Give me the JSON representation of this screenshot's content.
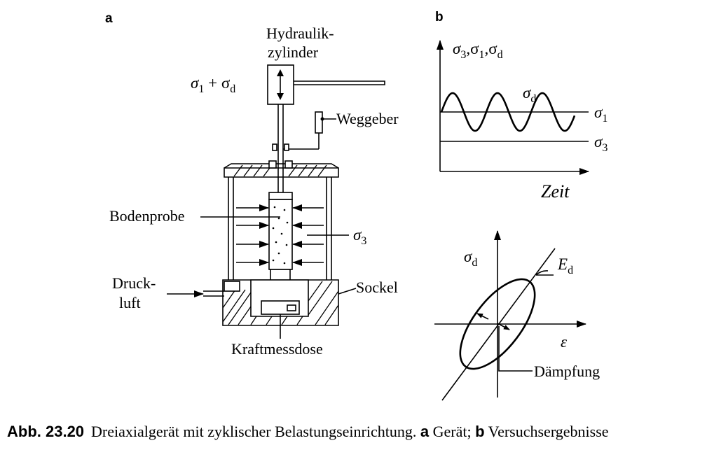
{
  "panel_a": {
    "label": "a",
    "cylinder_label_line1": "Hydraulik-",
    "cylinder_label_line2": "zylinder",
    "load_label": "σ",
    "load_sub1": "1",
    "load_plus": " + σ",
    "load_sub2": "d",
    "weggeber": "Weggeber",
    "bodenprobe": "Bodenprobe",
    "sigma3": "σ",
    "sigma3_sub": "3",
    "druck_line1": "Druck-",
    "druck_line2": "luft",
    "sockel": "Sockel",
    "kraftmessdose": "Kraftmessdose"
  },
  "panel_b": {
    "label": "b",
    "y_axis_label": "σ3,σ1,σd",
    "y_axis_parts": [
      "σ",
      "3",
      ",σ",
      "1",
      ",σ",
      "d"
    ],
    "x_axis_label": "Zeit",
    "curve_label": "σ",
    "curve_sub": "d",
    "level1": "σ",
    "level1_sub": "1",
    "level3": "σ",
    "level3_sub": "3"
  },
  "panel_c": {
    "y_axis": "σ",
    "y_axis_sub": "d",
    "x_axis": "ε",
    "slope": "E",
    "slope_sub": "d",
    "loop_label": "Dämpfung"
  },
  "caption": {
    "label": "Abb. 23.20",
    "text_before": "Dreiaxialgerät mit zyklischer Belastungseinrichtung. ",
    "a": "a",
    "text_a": " Gerät; ",
    "b": "b",
    "text_b": " Versuchsergebnisse"
  }
}
